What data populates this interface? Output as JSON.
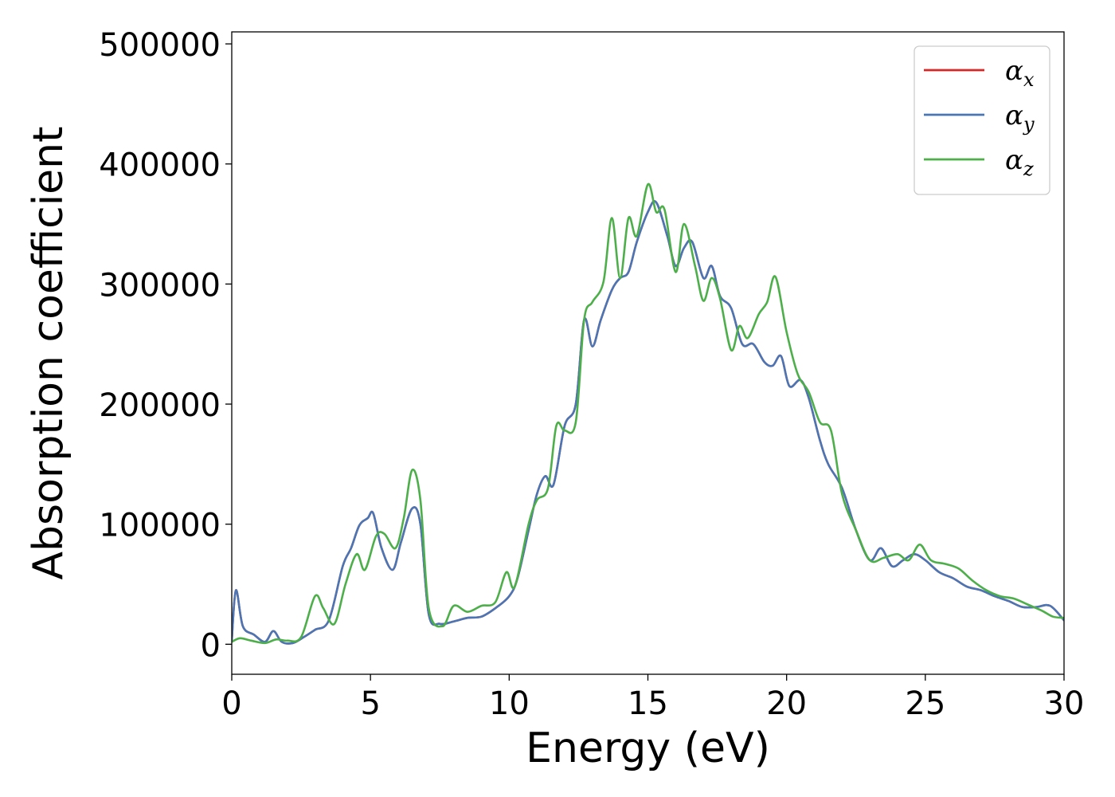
{
  "chart_data": {
    "type": "line",
    "title": "",
    "xlabel": "Energy (eV)",
    "ylabel": "Absorption coefficient",
    "xlim": [
      0,
      30
    ],
    "ylim": [
      -25000,
      510000
    ],
    "xticks": [
      0,
      5,
      10,
      15,
      20,
      25,
      30
    ],
    "yticks": [
      0,
      100000,
      200000,
      300000,
      400000,
      500000
    ],
    "xtick_labels": [
      "0",
      "5",
      "10",
      "15",
      "20",
      "25",
      "30"
    ],
    "ytick_labels": [
      "0",
      "100000",
      "200000",
      "300000",
      "400000",
      "500000"
    ],
    "grid": false,
    "legend_position": "top-right",
    "series": [
      {
        "name": "α",
        "subscript": "x",
        "color": "#d62728",
        "x": [
          0,
          0.15,
          0.4,
          0.8,
          1.2,
          1.5,
          1.8,
          2.2,
          2.6,
          3.0,
          3.5,
          4.0,
          4.3,
          4.6,
          4.9,
          5.1,
          5.4,
          5.8,
          6.1,
          6.5,
          6.8,
          7.1,
          7.5,
          8.0,
          8.5,
          9.0,
          9.5,
          10.0,
          10.3,
          10.7,
          11.0,
          11.3,
          11.6,
          12.0,
          12.4,
          12.7,
          13.0,
          13.3,
          13.7,
          14.0,
          14.3,
          14.6,
          15.0,
          15.3,
          15.7,
          16.0,
          16.3,
          16.6,
          17.0,
          17.3,
          17.6,
          18.0,
          18.4,
          18.8,
          19.2,
          19.5,
          19.8,
          20.1,
          20.5,
          20.8,
          21.2,
          21.5,
          22.0,
          22.5,
          23.0,
          23.4,
          23.8,
          24.2,
          24.6,
          25.0,
          25.5,
          26.0,
          26.5,
          27.0,
          27.5,
          28.0,
          28.5,
          29.0,
          29.5,
          30.0
        ],
        "values": [
          3000,
          45000,
          15000,
          8000,
          2000,
          11000,
          2000,
          1000,
          6000,
          12000,
          20000,
          65000,
          80000,
          99000,
          105000,
          109000,
          80000,
          62000,
          85000,
          113000,
          100000,
          25000,
          17000,
          19000,
          22000,
          23000,
          30000,
          40000,
          55000,
          95000,
          125000,
          140000,
          133000,
          182000,
          200000,
          270000,
          248000,
          270000,
          295000,
          305000,
          310000,
          335000,
          360000,
          368000,
          340000,
          315000,
          330000,
          335000,
          305000,
          315000,
          290000,
          280000,
          250000,
          250000,
          235000,
          232000,
          240000,
          215000,
          220000,
          205000,
          170000,
          150000,
          130000,
          95000,
          70000,
          80000,
          65000,
          70000,
          75000,
          70000,
          60000,
          55000,
          48000,
          45000,
          40000,
          36000,
          31000,
          31000,
          32000,
          20000
        ]
      },
      {
        "name": "α",
        "subscript": "y",
        "color": "#4a76b5",
        "x": [
          0,
          0.15,
          0.4,
          0.8,
          1.2,
          1.5,
          1.8,
          2.2,
          2.6,
          3.0,
          3.5,
          4.0,
          4.3,
          4.6,
          4.9,
          5.1,
          5.4,
          5.8,
          6.1,
          6.5,
          6.8,
          7.1,
          7.5,
          8.0,
          8.5,
          9.0,
          9.5,
          10.0,
          10.3,
          10.7,
          11.0,
          11.3,
          11.6,
          12.0,
          12.4,
          12.7,
          13.0,
          13.3,
          13.7,
          14.0,
          14.3,
          14.6,
          15.0,
          15.3,
          15.7,
          16.0,
          16.3,
          16.6,
          17.0,
          17.3,
          17.6,
          18.0,
          18.4,
          18.8,
          19.2,
          19.5,
          19.8,
          20.1,
          20.5,
          20.8,
          21.2,
          21.5,
          22.0,
          22.5,
          23.0,
          23.4,
          23.8,
          24.2,
          24.6,
          25.0,
          25.5,
          26.0,
          26.5,
          27.0,
          27.5,
          28.0,
          28.5,
          29.0,
          29.5,
          30.0
        ],
        "values": [
          3000,
          45000,
          15000,
          8000,
          2000,
          11000,
          2000,
          1000,
          6000,
          12000,
          20000,
          65000,
          80000,
          99000,
          105000,
          109000,
          80000,
          62000,
          85000,
          113000,
          100000,
          25000,
          17000,
          19000,
          22000,
          23000,
          30000,
          40000,
          55000,
          95000,
          125000,
          140000,
          133000,
          182000,
          200000,
          270000,
          248000,
          270000,
          295000,
          305000,
          310000,
          335000,
          360000,
          368000,
          340000,
          315000,
          330000,
          335000,
          305000,
          315000,
          290000,
          280000,
          250000,
          250000,
          235000,
          232000,
          240000,
          215000,
          220000,
          205000,
          170000,
          150000,
          130000,
          95000,
          70000,
          80000,
          65000,
          70000,
          75000,
          70000,
          60000,
          55000,
          48000,
          45000,
          40000,
          36000,
          31000,
          31000,
          32000,
          20000
        ]
      },
      {
        "name": "α",
        "subscript": "z",
        "color": "#4daf4a",
        "x": [
          0,
          0.3,
          0.7,
          1.2,
          1.6,
          2.0,
          2.5,
          3.0,
          3.3,
          3.7,
          4.1,
          4.5,
          4.8,
          5.2,
          5.5,
          5.9,
          6.2,
          6.5,
          6.8,
          7.1,
          7.6,
          8.0,
          8.5,
          9.0,
          9.5,
          9.9,
          10.2,
          10.7,
          11.0,
          11.4,
          11.7,
          12.0,
          12.4,
          12.7,
          13.0,
          13.4,
          13.7,
          14.0,
          14.3,
          14.6,
          15.0,
          15.3,
          15.6,
          16.0,
          16.3,
          16.7,
          17.0,
          17.3,
          17.6,
          18.0,
          18.3,
          18.6,
          19.0,
          19.3,
          19.6,
          20.0,
          20.4,
          20.8,
          21.2,
          21.6,
          22.0,
          22.5,
          23.0,
          23.5,
          24.0,
          24.4,
          24.8,
          25.2,
          25.7,
          26.2,
          26.7,
          27.2,
          27.7,
          28.2,
          28.7,
          29.2,
          29.6,
          30.0
        ],
        "values": [
          2000,
          5000,
          3000,
          1000,
          4000,
          3000,
          6000,
          40000,
          30000,
          17000,
          50000,
          75000,
          62000,
          90000,
          92000,
          80000,
          105000,
          145000,
          120000,
          30000,
          15000,
          32000,
          27000,
          32000,
          35000,
          60000,
          48000,
          100000,
          120000,
          130000,
          182000,
          178000,
          185000,
          270000,
          285000,
          302000,
          355000,
          305000,
          355000,
          340000,
          383000,
          360000,
          362000,
          310000,
          350000,
          315000,
          286000,
          305000,
          288000,
          245000,
          265000,
          255000,
          275000,
          285000,
          306000,
          260000,
          225000,
          210000,
          185000,
          178000,
          125000,
          95000,
          70000,
          72000,
          75000,
          70000,
          83000,
          70000,
          67000,
          63000,
          53000,
          45000,
          40000,
          38000,
          33000,
          28000,
          23000,
          22000
        ]
      }
    ]
  }
}
